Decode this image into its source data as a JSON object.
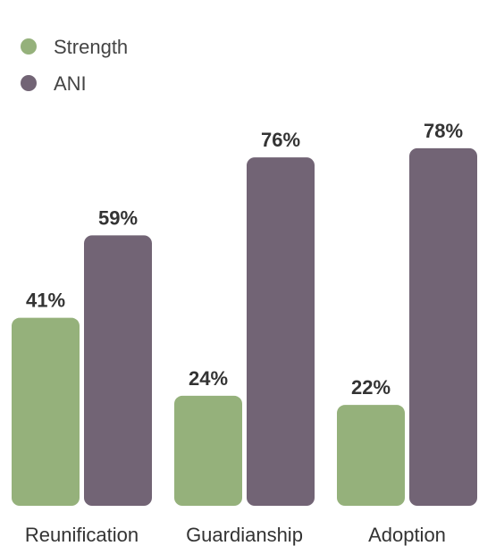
{
  "chart_data": {
    "type": "bar",
    "categories": [
      "Reunification",
      "Guardianship",
      "Adoption"
    ],
    "series": [
      {
        "name": "Strength",
        "values": [
          41,
          24,
          22
        ],
        "color": "#95b17b"
      },
      {
        "name": "ANI",
        "values": [
          59,
          76,
          78
        ],
        "color": "#726475"
      }
    ],
    "value_suffix": "%",
    "ylim": [
      0,
      100
    ],
    "grid": false,
    "legend_position": "top-left",
    "value_labels": true
  }
}
